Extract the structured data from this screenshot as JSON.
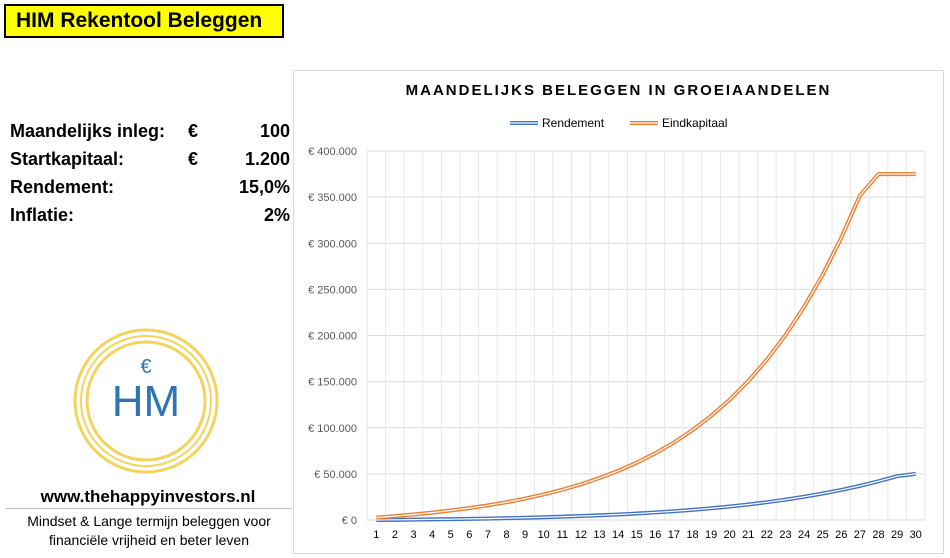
{
  "header": {
    "title": "HIM Rekentool Beleggen"
  },
  "params": [
    {
      "label": "Maandelijks inleg:",
      "currency": "€",
      "value": "100"
    },
    {
      "label": "Startkapitaal:",
      "currency": "€",
      "value": "1.200"
    },
    {
      "label": "Rendement:",
      "currency": "",
      "value": "15,0%"
    },
    {
      "label": "Inflatie:",
      "currency": "",
      "value": "2%"
    }
  ],
  "logo": {
    "symbol": "€",
    "letters": "HM",
    "color": "#2e75b6",
    "ring_color": "#f2d45c"
  },
  "footer": {
    "website": "www.thehappyinvestors.nl",
    "tagline_line1": "Mindset & Lange termijn beleggen voor",
    "tagline_line2": "financiële vrijheid en beter leven"
  },
  "chart_data": {
    "type": "line",
    "title": "MAANDELIJKS BELEGGEN IN GROEIAANDELEN",
    "legend_position": "top",
    "grid": true,
    "x": [
      1,
      2,
      3,
      4,
      5,
      6,
      7,
      8,
      9,
      10,
      11,
      12,
      13,
      14,
      15,
      16,
      17,
      18,
      19,
      20,
      21,
      22,
      23,
      24,
      25,
      26,
      27,
      28,
      29,
      30
    ],
    "ylim": [
      0,
      400000
    ],
    "ytick_labels": [
      "€ 0",
      "€ 50.000",
      "€ 100.000",
      "€ 150.000",
      "€ 200.000",
      "€ 250.000",
      "€ 300.000",
      "€ 350.000",
      "€ 400.000"
    ],
    "series": [
      {
        "name": "Rendement",
        "color": "#4472c4",
        "values": [
          0,
          200,
          400,
          700,
          900,
          1200,
          1500,
          2000,
          2400,
          3000,
          3600,
          4300,
          5100,
          6000,
          7000,
          8200,
          9500,
          11000,
          12700,
          14600,
          16800,
          19300,
          22100,
          25200,
          28700,
          32600,
          37000,
          42000,
          47500,
          50000
        ]
      },
      {
        "name": "Eindkapitaal",
        "color": "#ed7d31",
        "values": [
          2600,
          4200,
          6000,
          8000,
          10300,
          12900,
          15900,
          19300,
          23200,
          27700,
          32800,
          38700,
          45500,
          53200,
          62100,
          72300,
          84000,
          97400,
          112800,
          130400,
          150600,
          173800,
          200400,
          230900,
          265900,
          306000,
          351700,
          375000,
          375000,
          375000
        ]
      }
    ]
  }
}
